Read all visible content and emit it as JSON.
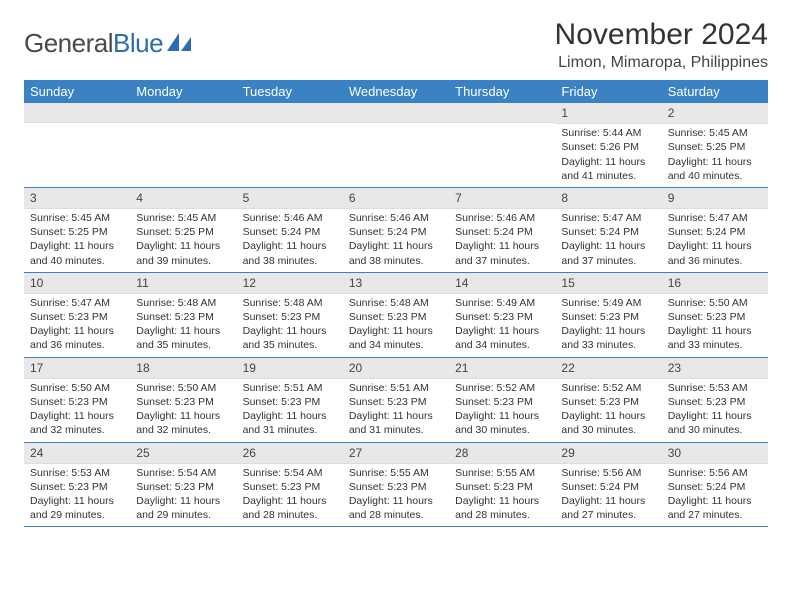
{
  "logo": {
    "text1": "General",
    "text2": "Blue"
  },
  "title": "November 2024",
  "location": "Limon, Mimaropa, Philippines",
  "colors": {
    "header_bg": "#3a82c4",
    "header_text": "#ffffff",
    "daynum_bg": "#e8e8e8",
    "row_border": "#3a82c4",
    "logo_gray": "#4a4a4a",
    "logo_blue": "#2a6db3"
  },
  "weekdays": [
    "Sunday",
    "Monday",
    "Tuesday",
    "Wednesday",
    "Thursday",
    "Friday",
    "Saturday"
  ],
  "weeks": [
    [
      {
        "num": "",
        "sunrise": "",
        "sunset": "",
        "daylight": ""
      },
      {
        "num": "",
        "sunrise": "",
        "sunset": "",
        "daylight": ""
      },
      {
        "num": "",
        "sunrise": "",
        "sunset": "",
        "daylight": ""
      },
      {
        "num": "",
        "sunrise": "",
        "sunset": "",
        "daylight": ""
      },
      {
        "num": "",
        "sunrise": "",
        "sunset": "",
        "daylight": ""
      },
      {
        "num": "1",
        "sunrise": "Sunrise: 5:44 AM",
        "sunset": "Sunset: 5:26 PM",
        "daylight": "Daylight: 11 hours and 41 minutes."
      },
      {
        "num": "2",
        "sunrise": "Sunrise: 5:45 AM",
        "sunset": "Sunset: 5:25 PM",
        "daylight": "Daylight: 11 hours and 40 minutes."
      }
    ],
    [
      {
        "num": "3",
        "sunrise": "Sunrise: 5:45 AM",
        "sunset": "Sunset: 5:25 PM",
        "daylight": "Daylight: 11 hours and 40 minutes."
      },
      {
        "num": "4",
        "sunrise": "Sunrise: 5:45 AM",
        "sunset": "Sunset: 5:25 PM",
        "daylight": "Daylight: 11 hours and 39 minutes."
      },
      {
        "num": "5",
        "sunrise": "Sunrise: 5:46 AM",
        "sunset": "Sunset: 5:24 PM",
        "daylight": "Daylight: 11 hours and 38 minutes."
      },
      {
        "num": "6",
        "sunrise": "Sunrise: 5:46 AM",
        "sunset": "Sunset: 5:24 PM",
        "daylight": "Daylight: 11 hours and 38 minutes."
      },
      {
        "num": "7",
        "sunrise": "Sunrise: 5:46 AM",
        "sunset": "Sunset: 5:24 PM",
        "daylight": "Daylight: 11 hours and 37 minutes."
      },
      {
        "num": "8",
        "sunrise": "Sunrise: 5:47 AM",
        "sunset": "Sunset: 5:24 PM",
        "daylight": "Daylight: 11 hours and 37 minutes."
      },
      {
        "num": "9",
        "sunrise": "Sunrise: 5:47 AM",
        "sunset": "Sunset: 5:24 PM",
        "daylight": "Daylight: 11 hours and 36 minutes."
      }
    ],
    [
      {
        "num": "10",
        "sunrise": "Sunrise: 5:47 AM",
        "sunset": "Sunset: 5:23 PM",
        "daylight": "Daylight: 11 hours and 36 minutes."
      },
      {
        "num": "11",
        "sunrise": "Sunrise: 5:48 AM",
        "sunset": "Sunset: 5:23 PM",
        "daylight": "Daylight: 11 hours and 35 minutes."
      },
      {
        "num": "12",
        "sunrise": "Sunrise: 5:48 AM",
        "sunset": "Sunset: 5:23 PM",
        "daylight": "Daylight: 11 hours and 35 minutes."
      },
      {
        "num": "13",
        "sunrise": "Sunrise: 5:48 AM",
        "sunset": "Sunset: 5:23 PM",
        "daylight": "Daylight: 11 hours and 34 minutes."
      },
      {
        "num": "14",
        "sunrise": "Sunrise: 5:49 AM",
        "sunset": "Sunset: 5:23 PM",
        "daylight": "Daylight: 11 hours and 34 minutes."
      },
      {
        "num": "15",
        "sunrise": "Sunrise: 5:49 AM",
        "sunset": "Sunset: 5:23 PM",
        "daylight": "Daylight: 11 hours and 33 minutes."
      },
      {
        "num": "16",
        "sunrise": "Sunrise: 5:50 AM",
        "sunset": "Sunset: 5:23 PM",
        "daylight": "Daylight: 11 hours and 33 minutes."
      }
    ],
    [
      {
        "num": "17",
        "sunrise": "Sunrise: 5:50 AM",
        "sunset": "Sunset: 5:23 PM",
        "daylight": "Daylight: 11 hours and 32 minutes."
      },
      {
        "num": "18",
        "sunrise": "Sunrise: 5:50 AM",
        "sunset": "Sunset: 5:23 PM",
        "daylight": "Daylight: 11 hours and 32 minutes."
      },
      {
        "num": "19",
        "sunrise": "Sunrise: 5:51 AM",
        "sunset": "Sunset: 5:23 PM",
        "daylight": "Daylight: 11 hours and 31 minutes."
      },
      {
        "num": "20",
        "sunrise": "Sunrise: 5:51 AM",
        "sunset": "Sunset: 5:23 PM",
        "daylight": "Daylight: 11 hours and 31 minutes."
      },
      {
        "num": "21",
        "sunrise": "Sunrise: 5:52 AM",
        "sunset": "Sunset: 5:23 PM",
        "daylight": "Daylight: 11 hours and 30 minutes."
      },
      {
        "num": "22",
        "sunrise": "Sunrise: 5:52 AM",
        "sunset": "Sunset: 5:23 PM",
        "daylight": "Daylight: 11 hours and 30 minutes."
      },
      {
        "num": "23",
        "sunrise": "Sunrise: 5:53 AM",
        "sunset": "Sunset: 5:23 PM",
        "daylight": "Daylight: 11 hours and 30 minutes."
      }
    ],
    [
      {
        "num": "24",
        "sunrise": "Sunrise: 5:53 AM",
        "sunset": "Sunset: 5:23 PM",
        "daylight": "Daylight: 11 hours and 29 minutes."
      },
      {
        "num": "25",
        "sunrise": "Sunrise: 5:54 AM",
        "sunset": "Sunset: 5:23 PM",
        "daylight": "Daylight: 11 hours and 29 minutes."
      },
      {
        "num": "26",
        "sunrise": "Sunrise: 5:54 AM",
        "sunset": "Sunset: 5:23 PM",
        "daylight": "Daylight: 11 hours and 28 minutes."
      },
      {
        "num": "27",
        "sunrise": "Sunrise: 5:55 AM",
        "sunset": "Sunset: 5:23 PM",
        "daylight": "Daylight: 11 hours and 28 minutes."
      },
      {
        "num": "28",
        "sunrise": "Sunrise: 5:55 AM",
        "sunset": "Sunset: 5:23 PM",
        "daylight": "Daylight: 11 hours and 28 minutes."
      },
      {
        "num": "29",
        "sunrise": "Sunrise: 5:56 AM",
        "sunset": "Sunset: 5:24 PM",
        "daylight": "Daylight: 11 hours and 27 minutes."
      },
      {
        "num": "30",
        "sunrise": "Sunrise: 5:56 AM",
        "sunset": "Sunset: 5:24 PM",
        "daylight": "Daylight: 11 hours and 27 minutes."
      }
    ]
  ]
}
